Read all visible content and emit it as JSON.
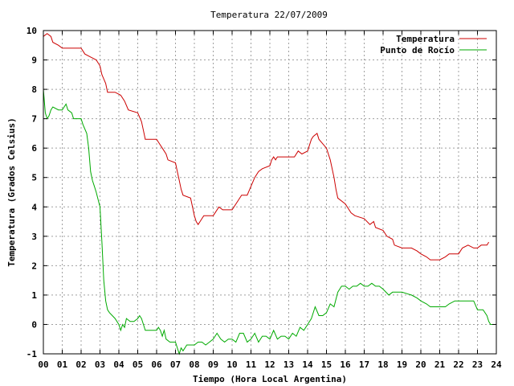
{
  "chart_data": {
    "type": "line",
    "title": "Temperatura 22/07/2009",
    "xlabel": "Tiempo (Hora Local Argentina)",
    "ylabel": "Temperatura (Grados Celsius)",
    "xlim": [
      0,
      24
    ],
    "ylim": [
      -1,
      10
    ],
    "x_ticks": [
      "00",
      "01",
      "02",
      "03",
      "04",
      "05",
      "06",
      "07",
      "08",
      "09",
      "10",
      "11",
      "12",
      "13",
      "14",
      "15",
      "16",
      "17",
      "18",
      "19",
      "20",
      "21",
      "22",
      "23",
      "24"
    ],
    "y_ticks": [
      "-1",
      "0",
      "1",
      "2",
      "3",
      "4",
      "5",
      "6",
      "7",
      "8",
      "9",
      "10"
    ],
    "grid": true,
    "legend_position": "top-right",
    "series": [
      {
        "name": "Temperatura",
        "color": "#cc0000",
        "points": [
          [
            0.0,
            9.8
          ],
          [
            0.2,
            9.9
          ],
          [
            0.4,
            9.8
          ],
          [
            0.5,
            9.6
          ],
          [
            0.8,
            9.5
          ],
          [
            1.0,
            9.4
          ],
          [
            1.5,
            9.4
          ],
          [
            2.0,
            9.4
          ],
          [
            2.2,
            9.2
          ],
          [
            2.5,
            9.1
          ],
          [
            2.8,
            9.0
          ],
          [
            3.0,
            8.8
          ],
          [
            3.1,
            8.5
          ],
          [
            3.3,
            8.2
          ],
          [
            3.4,
            7.9
          ],
          [
            3.8,
            7.9
          ],
          [
            4.1,
            7.8
          ],
          [
            4.3,
            7.6
          ],
          [
            4.5,
            7.3
          ],
          [
            5.0,
            7.2
          ],
          [
            5.2,
            6.9
          ],
          [
            5.3,
            6.6
          ],
          [
            5.4,
            6.3
          ],
          [
            6.0,
            6.3
          ],
          [
            6.2,
            6.1
          ],
          [
            6.3,
            6.0
          ],
          [
            6.5,
            5.8
          ],
          [
            6.6,
            5.6
          ],
          [
            7.0,
            5.5
          ],
          [
            7.1,
            5.2
          ],
          [
            7.2,
            4.9
          ],
          [
            7.3,
            4.6
          ],
          [
            7.4,
            4.4
          ],
          [
            7.8,
            4.3
          ],
          [
            7.9,
            4.0
          ],
          [
            8.0,
            3.7
          ],
          [
            8.1,
            3.5
          ],
          [
            8.2,
            3.4
          ],
          [
            8.3,
            3.5
          ],
          [
            8.4,
            3.6
          ],
          [
            8.5,
            3.7
          ],
          [
            9.0,
            3.7
          ],
          [
            9.3,
            4.0
          ],
          [
            9.5,
            3.9
          ],
          [
            10.0,
            3.9
          ],
          [
            10.3,
            4.2
          ],
          [
            10.5,
            4.4
          ],
          [
            10.8,
            4.4
          ],
          [
            11.0,
            4.7
          ],
          [
            11.2,
            5.0
          ],
          [
            11.4,
            5.2
          ],
          [
            11.6,
            5.3
          ],
          [
            12.0,
            5.4
          ],
          [
            12.1,
            5.6
          ],
          [
            12.2,
            5.7
          ],
          [
            12.3,
            5.6
          ],
          [
            12.4,
            5.7
          ],
          [
            13.0,
            5.7
          ],
          [
            13.3,
            5.7
          ],
          [
            13.5,
            5.9
          ],
          [
            13.7,
            5.8
          ],
          [
            14.0,
            5.9
          ],
          [
            14.2,
            6.3
          ],
          [
            14.3,
            6.4
          ],
          [
            14.5,
            6.5
          ],
          [
            14.6,
            6.3
          ],
          [
            15.0,
            6.0
          ],
          [
            15.2,
            5.6
          ],
          [
            15.4,
            5.0
          ],
          [
            15.5,
            4.6
          ],
          [
            15.6,
            4.3
          ],
          [
            16.0,
            4.1
          ],
          [
            16.3,
            3.8
          ],
          [
            16.5,
            3.7
          ],
          [
            17.0,
            3.6
          ],
          [
            17.3,
            3.4
          ],
          [
            17.5,
            3.5
          ],
          [
            17.6,
            3.3
          ],
          [
            18.0,
            3.2
          ],
          [
            18.2,
            3.0
          ],
          [
            18.5,
            2.9
          ],
          [
            18.6,
            2.7
          ],
          [
            19.0,
            2.6
          ],
          [
            19.5,
            2.6
          ],
          [
            19.8,
            2.5
          ],
          [
            20.0,
            2.4
          ],
          [
            20.3,
            2.3
          ],
          [
            20.5,
            2.2
          ],
          [
            21.0,
            2.2
          ],
          [
            21.3,
            2.3
          ],
          [
            21.5,
            2.4
          ],
          [
            22.0,
            2.4
          ],
          [
            22.2,
            2.6
          ],
          [
            22.5,
            2.7
          ],
          [
            22.8,
            2.6
          ],
          [
            23.0,
            2.6
          ],
          [
            23.2,
            2.7
          ],
          [
            23.5,
            2.7
          ],
          [
            23.6,
            2.8
          ]
        ]
      },
      {
        "name": "Punto de Rocío",
        "color": "#00aa00",
        "points": [
          [
            0.0,
            8.0
          ],
          [
            0.1,
            7.2
          ],
          [
            0.2,
            7.0
          ],
          [
            0.3,
            7.1
          ],
          [
            0.4,
            7.3
          ],
          [
            0.5,
            7.4
          ],
          [
            0.8,
            7.3
          ],
          [
            1.0,
            7.3
          ],
          [
            1.2,
            7.5
          ],
          [
            1.3,
            7.3
          ],
          [
            1.5,
            7.2
          ],
          [
            1.6,
            7.0
          ],
          [
            2.0,
            7.0
          ],
          [
            2.1,
            6.8
          ],
          [
            2.3,
            6.5
          ],
          [
            2.4,
            6.0
          ],
          [
            2.5,
            5.2
          ],
          [
            2.6,
            4.9
          ],
          [
            2.7,
            4.7
          ],
          [
            2.8,
            4.5
          ],
          [
            3.0,
            4.0
          ],
          [
            3.1,
            2.8
          ],
          [
            3.2,
            1.5
          ],
          [
            3.3,
            0.8
          ],
          [
            3.4,
            0.5
          ],
          [
            3.5,
            0.4
          ],
          [
            3.8,
            0.2
          ],
          [
            4.0,
            0.0
          ],
          [
            4.1,
            -0.2
          ],
          [
            4.2,
            0.0
          ],
          [
            4.3,
            -0.1
          ],
          [
            4.4,
            0.2
          ],
          [
            4.6,
            0.1
          ],
          [
            4.8,
            0.1
          ],
          [
            5.0,
            0.2
          ],
          [
            5.1,
            0.3
          ],
          [
            5.2,
            0.2
          ],
          [
            5.3,
            0.0
          ],
          [
            5.4,
            -0.2
          ],
          [
            5.5,
            -0.2
          ],
          [
            6.0,
            -0.2
          ],
          [
            6.1,
            -0.1
          ],
          [
            6.2,
            -0.2
          ],
          [
            6.3,
            -0.4
          ],
          [
            6.4,
            -0.2
          ],
          [
            6.5,
            -0.5
          ],
          [
            6.7,
            -0.6
          ],
          [
            7.0,
            -0.6
          ],
          [
            7.1,
            -0.8
          ],
          [
            7.2,
            -1.0
          ],
          [
            7.3,
            -0.8
          ],
          [
            7.4,
            -0.9
          ],
          [
            7.6,
            -0.7
          ],
          [
            8.0,
            -0.7
          ],
          [
            8.2,
            -0.6
          ],
          [
            8.4,
            -0.6
          ],
          [
            8.6,
            -0.7
          ],
          [
            8.8,
            -0.6
          ],
          [
            9.0,
            -0.5
          ],
          [
            9.2,
            -0.3
          ],
          [
            9.4,
            -0.5
          ],
          [
            9.6,
            -0.6
          ],
          [
            9.8,
            -0.5
          ],
          [
            10.0,
            -0.5
          ],
          [
            10.2,
            -0.6
          ],
          [
            10.4,
            -0.3
          ],
          [
            10.6,
            -0.3
          ],
          [
            10.8,
            -0.6
          ],
          [
            11.0,
            -0.5
          ],
          [
            11.2,
            -0.3
          ],
          [
            11.4,
            -0.6
          ],
          [
            11.6,
            -0.4
          ],
          [
            11.8,
            -0.4
          ],
          [
            12.0,
            -0.5
          ],
          [
            12.2,
            -0.2
          ],
          [
            12.4,
            -0.5
          ],
          [
            12.6,
            -0.4
          ],
          [
            12.8,
            -0.4
          ],
          [
            13.0,
            -0.5
          ],
          [
            13.2,
            -0.3
          ],
          [
            13.4,
            -0.4
          ],
          [
            13.6,
            -0.1
          ],
          [
            13.8,
            -0.2
          ],
          [
            14.0,
            0.0
          ],
          [
            14.2,
            0.2
          ],
          [
            14.4,
            0.6
          ],
          [
            14.6,
            0.3
          ],
          [
            14.8,
            0.3
          ],
          [
            15.0,
            0.4
          ],
          [
            15.2,
            0.7
          ],
          [
            15.4,
            0.6
          ],
          [
            15.6,
            1.1
          ],
          [
            15.8,
            1.3
          ],
          [
            16.0,
            1.3
          ],
          [
            16.2,
            1.2
          ],
          [
            16.4,
            1.3
          ],
          [
            16.6,
            1.3
          ],
          [
            16.8,
            1.4
          ],
          [
            17.0,
            1.3
          ],
          [
            17.2,
            1.3
          ],
          [
            17.4,
            1.4
          ],
          [
            17.6,
            1.3
          ],
          [
            17.8,
            1.3
          ],
          [
            18.0,
            1.2
          ],
          [
            18.3,
            1.0
          ],
          [
            18.5,
            1.1
          ],
          [
            19.0,
            1.1
          ],
          [
            19.5,
            1.0
          ],
          [
            19.8,
            0.9
          ],
          [
            20.0,
            0.8
          ],
          [
            20.3,
            0.7
          ],
          [
            20.5,
            0.6
          ],
          [
            21.0,
            0.6
          ],
          [
            21.3,
            0.6
          ],
          [
            21.5,
            0.7
          ],
          [
            21.8,
            0.8
          ],
          [
            22.0,
            0.8
          ],
          [
            22.5,
            0.8
          ],
          [
            22.8,
            0.8
          ],
          [
            23.0,
            0.5
          ],
          [
            23.3,
            0.5
          ],
          [
            23.5,
            0.3
          ],
          [
            23.6,
            0.1
          ],
          [
            23.7,
            0.0
          ],
          [
            23.8,
            0.0
          ]
        ]
      }
    ]
  }
}
